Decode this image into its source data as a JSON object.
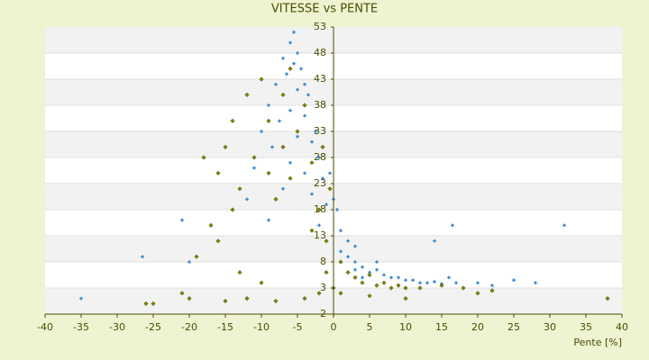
{
  "chart_data": {
    "type": "scatter",
    "title": "VITESSE vs PENTE",
    "x_label": "Pente [%]",
    "xlim": [
      -40,
      40
    ],
    "xticks": [
      -40,
      -35,
      -30,
      -25,
      -20,
      -15,
      -10,
      -5,
      0,
      5,
      10,
      15,
      20,
      25,
      30,
      35,
      40
    ],
    "ylim": [
      -2,
      53
    ],
    "yticks": [
      -2,
      3,
      8,
      13,
      18,
      23,
      28,
      33,
      38,
      43,
      48,
      53
    ],
    "grid": true,
    "series": [
      {
        "color": "#3d8fd6",
        "x": [
          -5.5,
          -6,
          -5,
          -7,
          -4.5,
          -6.5,
          -8,
          -5,
          -3.5,
          -9,
          -6,
          -4,
          -7.5,
          -10,
          -5,
          -3,
          -8.5,
          -2,
          -6,
          -11,
          -4,
          -1.5,
          -7,
          -3,
          -12,
          -1,
          0.5,
          -9,
          -2,
          1,
          2,
          3,
          -21,
          -26.5,
          -20,
          -35,
          2,
          3,
          4,
          5,
          6,
          7,
          8,
          9,
          10,
          11,
          12,
          13,
          14,
          15,
          16,
          17,
          20,
          22,
          25,
          28,
          32,
          16.5,
          14,
          6,
          4,
          3,
          1,
          0,
          -0.5,
          -2.5,
          -4,
          -5.5
        ],
        "values": [
          52,
          50,
          48,
          47,
          45,
          44,
          42,
          41,
          40,
          38,
          37,
          36,
          35,
          33,
          32,
          31,
          30,
          28,
          27,
          26,
          25,
          24,
          22,
          21,
          20,
          19,
          18,
          16,
          15,
          14,
          12,
          11,
          16,
          9,
          8,
          1,
          9,
          8,
          7,
          6,
          6.5,
          5.5,
          5,
          5,
          4.5,
          4.5,
          4,
          4,
          4.2,
          3.8,
          5,
          4,
          4,
          3.5,
          4.5,
          4,
          15,
          15,
          12,
          8,
          5,
          6.5,
          10,
          20,
          25,
          33,
          42,
          46
        ]
      },
      {
        "color": "#8a8a00",
        "x": [
          -10,
          -12,
          -14,
          -15,
          -18,
          -16,
          -13,
          -9,
          -7,
          -4,
          -3,
          -11,
          -8,
          -6,
          -14,
          -17,
          -16,
          -19,
          -13,
          -10,
          -12,
          -20,
          -25,
          -15,
          -8,
          -4,
          -2,
          -1,
          -1,
          -2,
          0,
          1,
          2,
          3,
          4,
          5,
          6,
          7,
          8,
          9,
          10,
          12,
          15,
          18,
          20,
          22,
          38,
          -21,
          -26,
          -6,
          -7,
          -5,
          -9,
          -1.5,
          -0.5,
          -3,
          1,
          10,
          5
        ],
        "values": [
          43,
          40,
          35,
          30,
          28,
          25,
          22,
          35,
          30,
          38,
          27,
          28,
          20,
          24,
          18,
          15,
          12,
          9,
          6,
          4,
          1,
          1,
          0,
          0.5,
          0.5,
          1,
          2,
          6,
          12,
          18,
          3,
          8,
          6,
          5,
          4,
          5.5,
          3.5,
          4,
          3,
          3.5,
          3,
          3,
          3.5,
          3,
          2,
          2.5,
          1,
          2,
          0,
          45,
          40,
          33,
          25,
          30,
          22,
          14,
          2,
          1,
          1.5
        ]
      }
    ]
  }
}
